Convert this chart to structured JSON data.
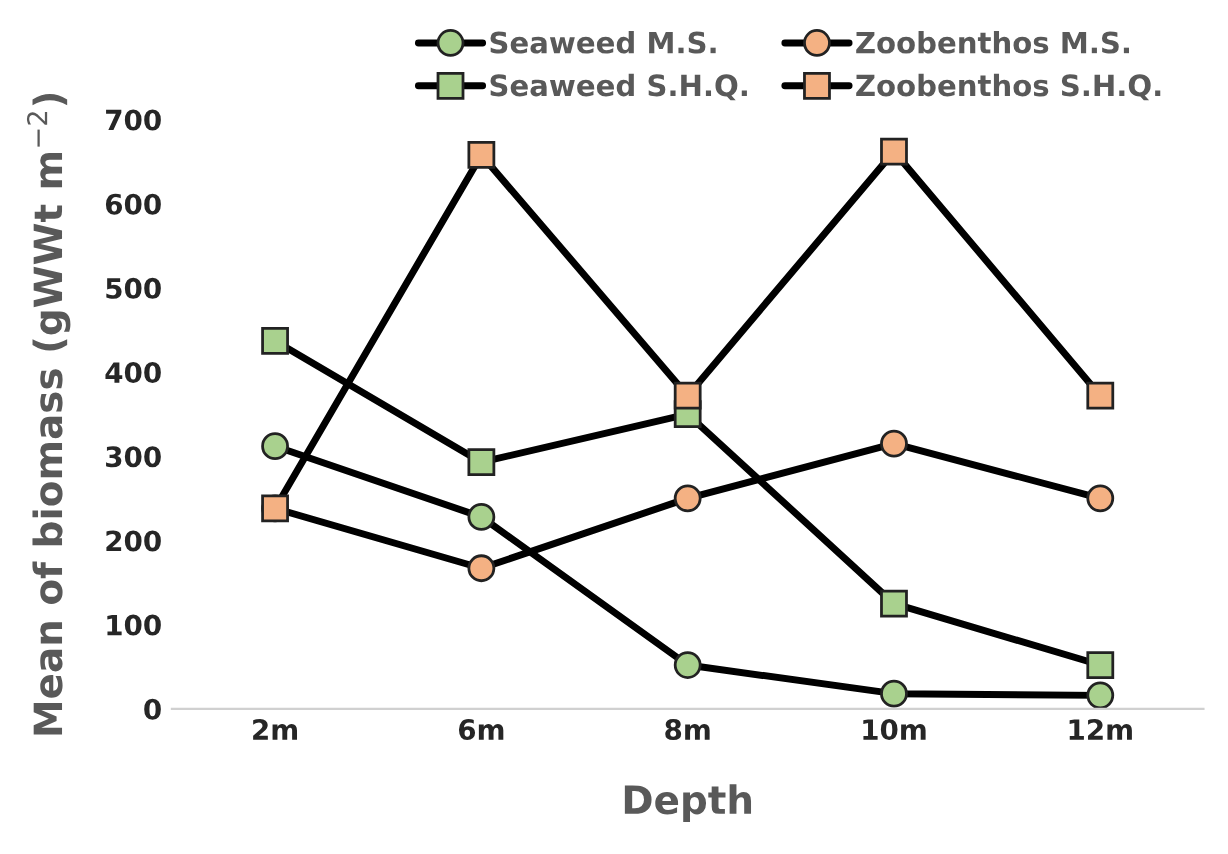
{
  "chart_data": {
    "type": "line",
    "xlabel": "Depth",
    "ylabel": "Mean of biomass (gWWt m$^{−2}$)",
    "categories": [
      "2m",
      "6m",
      "8m",
      "10m",
      "12m"
    ],
    "series": [
      {
        "name": "Seaweed M.S.",
        "color": "#a9d18e",
        "marker": "circle",
        "values": [
          312,
          228,
          52,
          18,
          16
        ]
      },
      {
        "name": "Seaweed S.H.Q.",
        "color": "#a9d18e",
        "marker": "square",
        "values": [
          437,
          293,
          350,
          125,
          52
        ]
      },
      {
        "name": "Zoobenthos M.S.",
        "color": "#f4b183",
        "marker": "circle",
        "values": [
          238,
          167,
          250,
          315,
          250
        ]
      },
      {
        "name": "Zoobenthos S.H.Q.",
        "color": "#f4b183",
        "marker": "square",
        "values": [
          238,
          658,
          372,
          662,
          372
        ]
      }
    ],
    "ylim": [
      0,
      700
    ],
    "yticks": [
      0,
      100,
      200,
      300,
      400,
      500,
      600,
      700
    ],
    "grid": false,
    "legend": "top",
    "line_style": "solid"
  }
}
